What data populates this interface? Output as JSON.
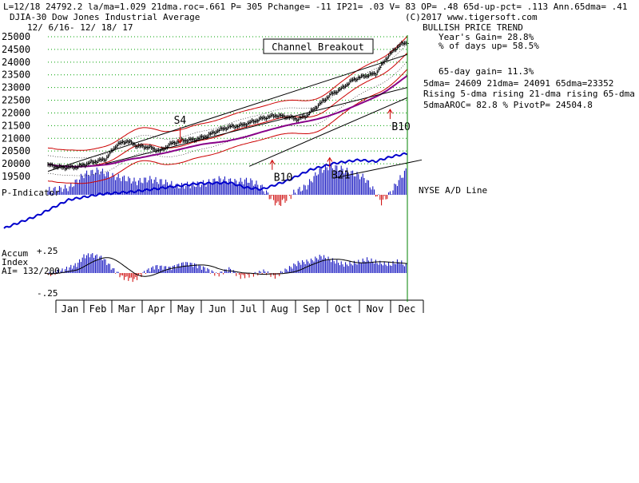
{
  "header": {
    "line1": "L=12/18  24792.2  la/ma=1.029 21dma.roc=.661 P=  305 Pchange= -11 IP21= .03 V= 83 OP= .48 65d-up-pct= .113 Ann.65dma= .41",
    "title": "DJIA-30  Dow Jones Industrial Average",
    "date_range": "12/ 6/16- 12/ 18/ 17"
  },
  "sidebar": {
    "copyright": "(C)2017 www.tigersoft.com",
    "trend": "BULLISH PRICE TREND",
    "years_gain": "Year's Gain= 28.8%",
    "pct_days_up": "% of days up= 58.5%",
    "gain_65day": "65-day gain= 11.3%",
    "dma_values": "5dma= 24609 21dma= 24091 65dma=23352",
    "dma_rising": "Rising 5-dma rising 21-dma rising 65-dma",
    "aroc_pivot": "5dmaAROC= 82.8 %  PivotP= 24504.8"
  },
  "labels": {
    "channel_breakout": "Channel Breakout",
    "p_indicator": "P-Indicator",
    "nyse_ad": "NYSE A/D Line",
    "accum_title": "Accum",
    "accum_index": "Index",
    "accum_ai": "AI= 132/200",
    "accum_top": "+.25",
    "accum_bottom": "-.25"
  },
  "colors": {
    "price": "#000000",
    "grid": "#00a000",
    "ma_red": "#cc0000",
    "ma_purple": "#880088",
    "ad_line": "#0000cc",
    "pos_bars": "#0000bb",
    "neg_bars": "#cc0000",
    "today_marker": "#008000"
  },
  "chart_data": {
    "type": "line",
    "title": "DJIA-30  Dow Jones Industrial Average",
    "ylim": [
      19500,
      25000
    ],
    "yticks": [
      19500,
      20000,
      20500,
      21000,
      21500,
      22000,
      22500,
      23000,
      23500,
      24000,
      24500,
      25000
    ],
    "months": [
      "Jan",
      "Feb",
      "Mar",
      "Apr",
      "May",
      "Jun",
      "Jul",
      "Aug",
      "Sep",
      "Oct",
      "Nov",
      "Dec"
    ],
    "price_anchors": [
      [
        0,
        19950
      ],
      [
        10,
        19850
      ],
      [
        20,
        19870
      ],
      [
        30,
        20050
      ],
      [
        40,
        20180
      ],
      [
        48,
        20750
      ],
      [
        55,
        20900
      ],
      [
        62,
        20700
      ],
      [
        70,
        20650
      ],
      [
        78,
        20500
      ],
      [
        86,
        20800
      ],
      [
        94,
        20920
      ],
      [
        102,
        20950
      ],
      [
        110,
        21080
      ],
      [
        118,
        21300
      ],
      [
        126,
        21450
      ],
      [
        134,
        21500
      ],
      [
        142,
        21650
      ],
      [
        150,
        21800
      ],
      [
        158,
        21900
      ],
      [
        166,
        21850
      ],
      [
        174,
        21750
      ],
      [
        180,
        21900
      ],
      [
        188,
        22300
      ],
      [
        196,
        22700
      ],
      [
        204,
        22950
      ],
      [
        212,
        23300
      ],
      [
        220,
        23450
      ],
      [
        228,
        23550
      ],
      [
        236,
        24200
      ],
      [
        244,
        24650
      ],
      [
        250,
        24792
      ]
    ],
    "signals": [
      {
        "label": "S4",
        "x": 92,
        "value": 20750,
        "dir": "down"
      },
      {
        "label": "B10",
        "x": 156,
        "value": 20200,
        "dir": "up"
      },
      {
        "label": "B21",
        "x": 196,
        "value": 20300,
        "dir": "up"
      },
      {
        "label": "B10",
        "x": 238,
        "value": 22200,
        "dir": "up"
      }
    ],
    "p_indicator_anchors": [
      [
        0,
        0.15
      ],
      [
        15,
        0.25
      ],
      [
        25,
        0.7
      ],
      [
        35,
        0.85
      ],
      [
        45,
        0.65
      ],
      [
        55,
        0.55
      ],
      [
        62,
        0.45
      ],
      [
        70,
        0.55
      ],
      [
        80,
        0.45
      ],
      [
        90,
        0.3
      ],
      [
        100,
        0.35
      ],
      [
        110,
        0.4
      ],
      [
        120,
        0.55
      ],
      [
        130,
        0.45
      ],
      [
        140,
        0.5
      ],
      [
        148,
        0.3
      ],
      [
        154,
        -0.05
      ],
      [
        160,
        -0.35
      ],
      [
        166,
        -0.15
      ],
      [
        172,
        0.1
      ],
      [
        180,
        0.3
      ],
      [
        188,
        0.8
      ],
      [
        196,
        1.0
      ],
      [
        204,
        0.9
      ],
      [
        212,
        0.75
      ],
      [
        220,
        0.6
      ],
      [
        226,
        0.2
      ],
      [
        232,
        -0.25
      ],
      [
        238,
        0.05
      ],
      [
        244,
        0.5
      ],
      [
        250,
        0.9
      ]
    ],
    "ad_line_anchors": [
      [
        0,
        0.0
      ],
      [
        20,
        0.15
      ],
      [
        40,
        0.35
      ],
      [
        60,
        0.42
      ],
      [
        80,
        0.45
      ],
      [
        100,
        0.5
      ],
      [
        120,
        0.55
      ],
      [
        140,
        0.56
      ],
      [
        150,
        0.5
      ],
      [
        160,
        0.48
      ],
      [
        175,
        0.58
      ],
      [
        190,
        0.72
      ],
      [
        205,
        0.8
      ],
      [
        220,
        0.84
      ],
      [
        230,
        0.82
      ],
      [
        240,
        0.88
      ],
      [
        250,
        0.92
      ]
    ],
    "accum_anchors": [
      [
        0,
        -0.02
      ],
      [
        10,
        0.03
      ],
      [
        20,
        0.1
      ],
      [
        25,
        0.2
      ],
      [
        30,
        0.22
      ],
      [
        38,
        0.18
      ],
      [
        45,
        0.05
      ],
      [
        52,
        -0.05
      ],
      [
        60,
        -0.08
      ],
      [
        68,
        0.02
      ],
      [
        75,
        0.08
      ],
      [
        85,
        0.06
      ],
      [
        95,
        0.12
      ],
      [
        102,
        0.1
      ],
      [
        110,
        0.05
      ],
      [
        118,
        -0.02
      ],
      [
        126,
        0.05
      ],
      [
        134,
        -0.04
      ],
      [
        142,
        -0.02
      ],
      [
        150,
        0.02
      ],
      [
        158,
        -0.04
      ],
      [
        166,
        0.04
      ],
      [
        174,
        0.12
      ],
      [
        182,
        0.14
      ],
      [
        190,
        0.2
      ],
      [
        198,
        0.15
      ],
      [
        206,
        0.1
      ],
      [
        214,
        0.12
      ],
      [
        222,
        0.16
      ],
      [
        230,
        0.12
      ],
      [
        238,
        0.1
      ],
      [
        244,
        0.14
      ],
      [
        250,
        0.08
      ]
    ]
  }
}
